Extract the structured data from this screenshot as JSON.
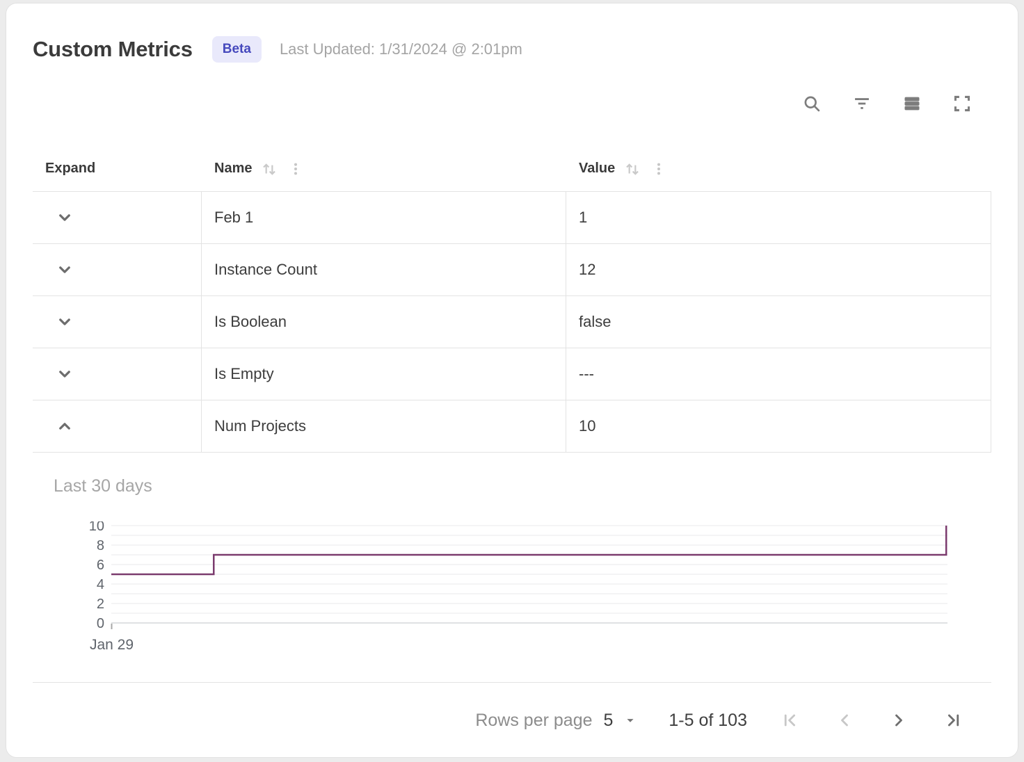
{
  "header": {
    "title": "Custom Metrics",
    "badge": "Beta",
    "last_updated": "Last Updated: 1/31/2024 @ 2:01pm"
  },
  "toolbar": {
    "buttons": [
      "search",
      "filter",
      "density",
      "fullscreen"
    ]
  },
  "table": {
    "columns": [
      {
        "label": "Expand",
        "sortable": false
      },
      {
        "label": "Name",
        "sortable": true
      },
      {
        "label": "Value",
        "sortable": true
      }
    ],
    "rows": [
      {
        "name": "Feb 1",
        "value": "1",
        "expanded": false
      },
      {
        "name": "Instance Count",
        "value": "12",
        "expanded": false
      },
      {
        "name": "Is Boolean",
        "value": "false",
        "expanded": false
      },
      {
        "name": "Is Empty",
        "value": "---",
        "expanded": false
      },
      {
        "name": "Num Projects",
        "value": "10",
        "expanded": true
      }
    ]
  },
  "chart_data": {
    "type": "line",
    "subtype": "step-after",
    "title": "Last 30 days",
    "series": [
      {
        "name": "Num Projects",
        "step_points": [
          [
            0,
            5
          ],
          [
            0.1225,
            7
          ],
          [
            0.9985,
            10
          ]
        ]
      }
    ],
    "ylim": [
      0,
      10
    ],
    "y_ticks": [
      10,
      8,
      6,
      4,
      2,
      0
    ],
    "grid_every": 1,
    "x_tick_labels": [
      "Jan 29"
    ],
    "line_color": "#7b3b6e",
    "grid_color": "#f0f0f2",
    "baseline_color": "#dfe1e3",
    "legend": "none"
  },
  "footer": {
    "rows_per_page_label": "Rows per page",
    "rows_per_page_value": "5",
    "range_label": "1-5 of 103",
    "pagination": [
      {
        "name": "first-page",
        "disabled": true
      },
      {
        "name": "previous-page",
        "disabled": true
      },
      {
        "name": "next-page",
        "disabled": false
      },
      {
        "name": "last-page",
        "disabled": false
      }
    ]
  }
}
